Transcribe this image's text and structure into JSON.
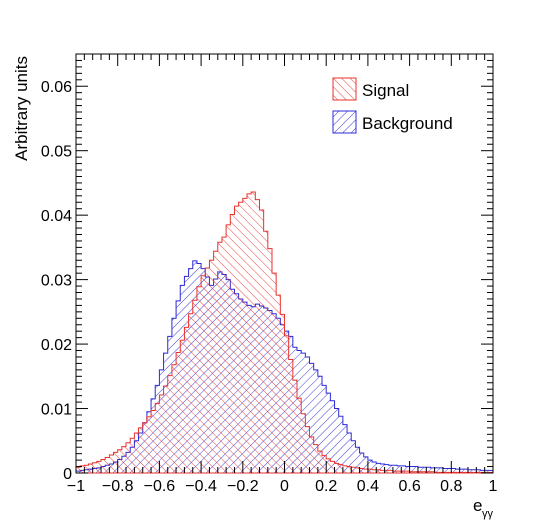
{
  "chart_data": {
    "type": "histogram",
    "title": "",
    "ylabel": "Arbitrary units",
    "xlabel_main": "e",
    "xlabel_sub": "γγ",
    "xlim": [
      -1,
      1
    ],
    "ylim": [
      0,
      0.065
    ],
    "xticks": [
      -1,
      -0.8,
      -0.6,
      -0.4,
      -0.2,
      0,
      0.2,
      0.4,
      0.6,
      0.8,
      1
    ],
    "xtick_labels": [
      "−1",
      "−0.8",
      "−0.6",
      "−0.4",
      "−0.2",
      "0",
      "0.2",
      "0.4",
      "0.6",
      "0.8",
      "1"
    ],
    "yticks": [
      0,
      0.01,
      0.02,
      0.03,
      0.04,
      0.05,
      0.06
    ],
    "ytick_labels": [
      "0",
      "0.01",
      "0.02",
      "0.03",
      "0.04",
      "0.05",
      "0.06"
    ],
    "legend_position": "top-right",
    "bins": {
      "low": -1,
      "high": 1,
      "count": 100
    },
    "series": [
      {
        "name": "Signal",
        "color": "#e8322d",
        "hatch": "backslash",
        "values": [
          0.0009,
          0.0011,
          0.0012,
          0.0014,
          0.0016,
          0.0018,
          0.0021,
          0.0024,
          0.0028,
          0.0032,
          0.0036,
          0.0041,
          0.0047,
          0.0054,
          0.0062,
          0.007,
          0.0078,
          0.0087,
          0.0097,
          0.0108,
          0.0121,
          0.0135,
          0.0151,
          0.0168,
          0.0187,
          0.0206,
          0.0226,
          0.0247,
          0.0268,
          0.0289,
          0.0306,
          0.0318,
          0.033,
          0.0344,
          0.0358,
          0.0366,
          0.0385,
          0.0401,
          0.0414,
          0.042,
          0.0426,
          0.0433,
          0.0436,
          0.0424,
          0.0408,
          0.0375,
          0.0348,
          0.031,
          0.0276,
          0.0246,
          0.0213,
          0.0176,
          0.0144,
          0.0116,
          0.0092,
          0.0072,
          0.0056,
          0.0044,
          0.0034,
          0.0027,
          0.0022,
          0.0018,
          0.0015,
          0.0013,
          0.0011,
          0.001,
          0.0009,
          0.0008,
          0.0007,
          0.0006,
          0.0006,
          0.0005,
          0.0005,
          0.0004,
          0.0004,
          0.0004,
          0.0003,
          0.0003,
          0.0003,
          0.0003,
          0.0002,
          0.0002,
          0.0002,
          0.0002,
          0.0002,
          0.0002,
          0.0001,
          0.0001,
          0.0001,
          0.0001,
          0.0001,
          0.0001,
          0.0001,
          0.0001,
          0.0001,
          0.0001,
          0.0001,
          0.0001,
          0.0001,
          0.0001
        ]
      },
      {
        "name": "Background",
        "color": "#2b2bd6",
        "hatch": "slash",
        "values": [
          0.0003,
          0.0004,
          0.0005,
          0.0006,
          0.0007,
          0.0008,
          0.001,
          0.0012,
          0.0014,
          0.0017,
          0.0021,
          0.0026,
          0.0032,
          0.004,
          0.005,
          0.0062,
          0.0078,
          0.0095,
          0.0115,
          0.0136,
          0.016,
          0.0186,
          0.0212,
          0.024,
          0.0267,
          0.0291,
          0.0305,
          0.0317,
          0.0329,
          0.0325,
          0.0317,
          0.0304,
          0.0291,
          0.0301,
          0.0312,
          0.0308,
          0.03,
          0.0285,
          0.0278,
          0.027,
          0.0265,
          0.026,
          0.0258,
          0.0262,
          0.0259,
          0.0256,
          0.0252,
          0.0247,
          0.024,
          0.023,
          0.022,
          0.0212,
          0.0195,
          0.019,
          0.0186,
          0.018,
          0.017,
          0.016,
          0.015,
          0.0136,
          0.0124,
          0.0112,
          0.01,
          0.0088,
          0.0075,
          0.0062,
          0.005,
          0.004,
          0.0031,
          0.0025,
          0.002,
          0.0017,
          0.0015,
          0.0014,
          0.0013,
          0.0012,
          0.0012,
          0.0011,
          0.0011,
          0.001,
          0.001,
          0.001,
          0.0009,
          0.0009,
          0.0009,
          0.0008,
          0.0008,
          0.0008,
          0.0007,
          0.0007,
          0.0007,
          0.0006,
          0.0006,
          0.0006,
          0.0005,
          0.0005,
          0.0005,
          0.0004,
          0.0004,
          0.0004
        ]
      }
    ]
  }
}
